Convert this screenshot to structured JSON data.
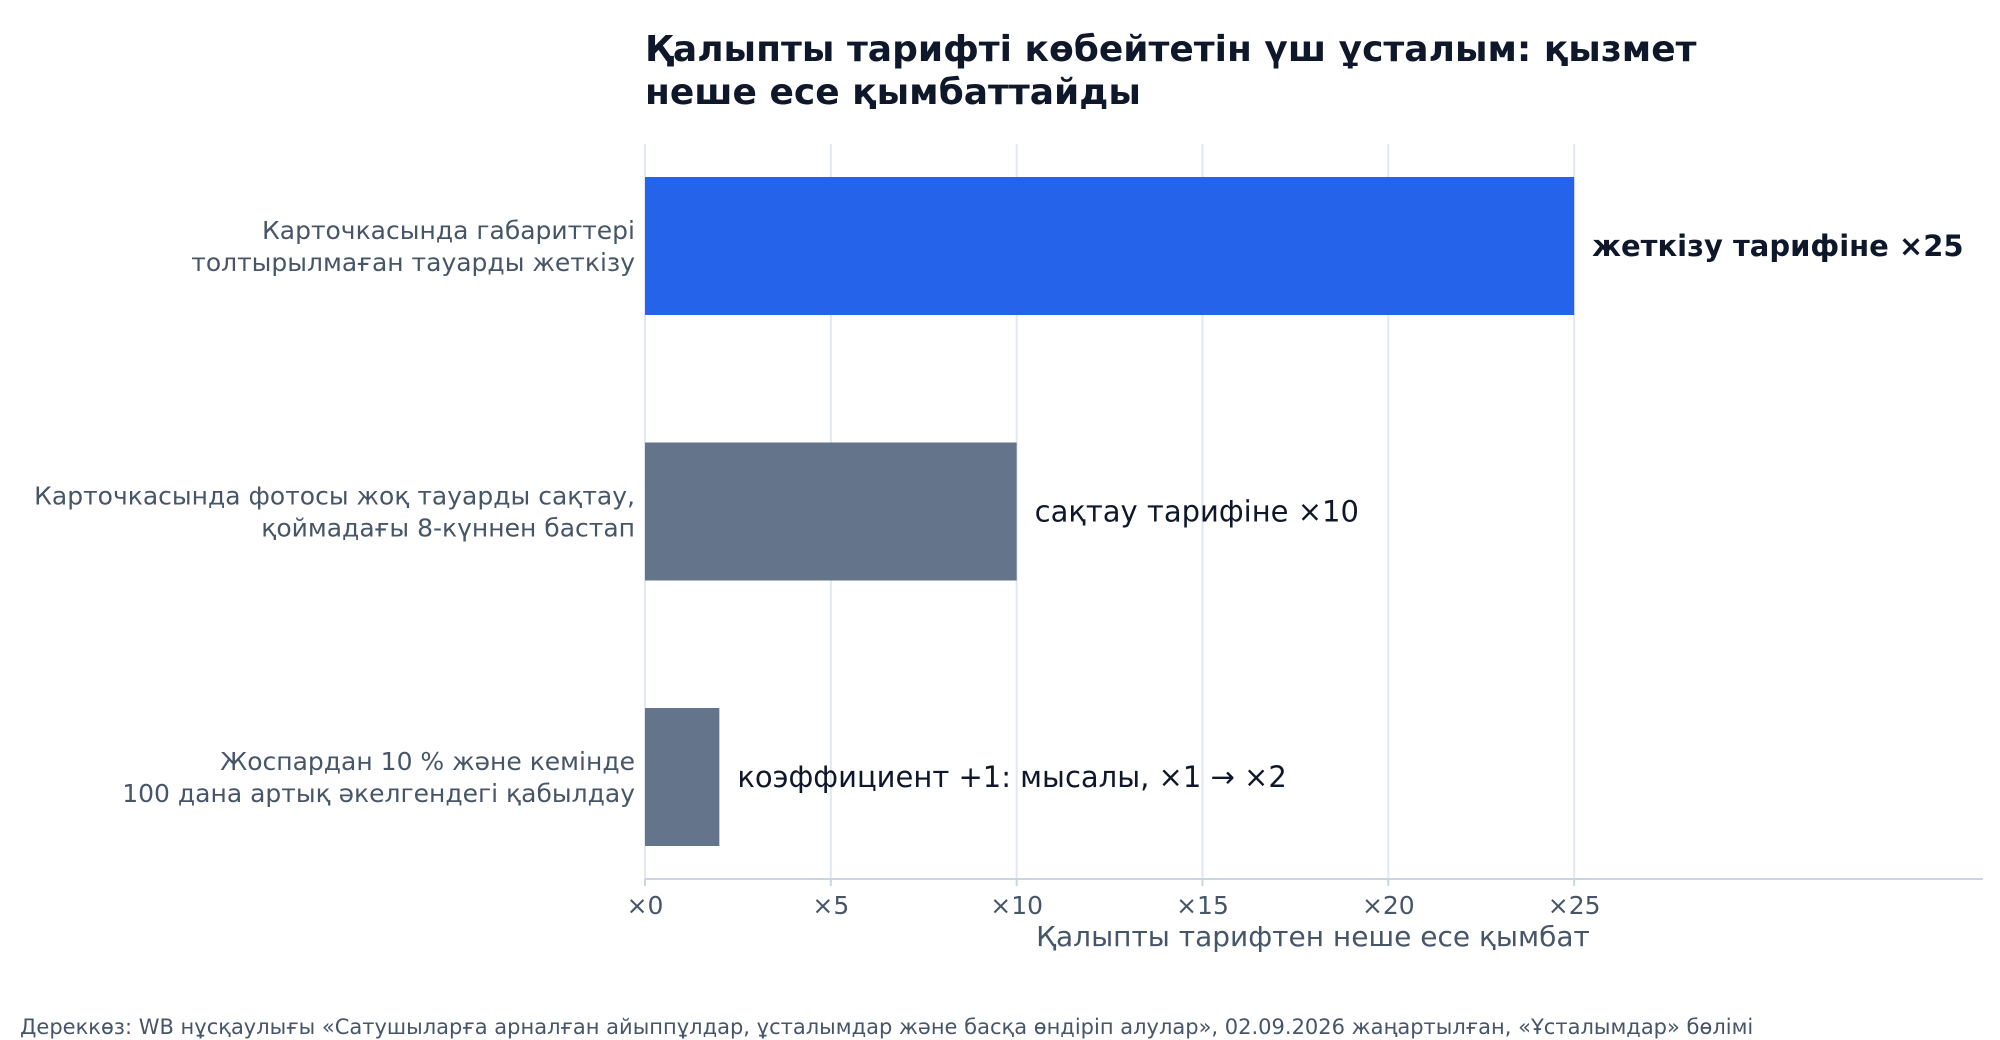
{
  "chart_data": {
    "type": "bar",
    "orientation": "horizontal",
    "title_lines": [
      "Қалыпты тарифті көбейтетін үш ұсталым: қызмет",
      "неше есе қымбаттайды"
    ],
    "categories": [
      [
        "Карточкасында габариттері",
        "толтырылмаған тауарды жеткізу"
      ],
      [
        "Карточкасында фотосы жоқ тауарды сақтау,",
        "қоймадағы 8-күннен бастап"
      ],
      [
        "Жоспардан 10 % және кемінде",
        "100 дана артық әкелгендегі қабылдау"
      ]
    ],
    "values": [
      25,
      10,
      2
    ],
    "data_labels": [
      "жеткізу тарифіне ×25",
      "сақтау тарифіне ×10",
      "коэффициент +1: мысалы, ×1 → ×2"
    ],
    "highlight_index": 0,
    "colors": {
      "highlight": "#2563eb",
      "default": "#64748b",
      "grid": "#e2e8f0",
      "axis": "#cbd5e1"
    },
    "xlim": [
      0,
      36
    ],
    "xticks": [
      0,
      5,
      10,
      15,
      20,
      25
    ],
    "xtick_labels": [
      "×0",
      "×5",
      "×10",
      "×15",
      "×20",
      "×25"
    ],
    "xlabel": "Қалыпты тарифтен неше есе қымбат",
    "ylabel": "",
    "grid": "vertical",
    "legend": "none"
  },
  "footer": {
    "source": "Дереккөз: WB нұсқаулығы «Сатушыларға арналған айыппұлдар, ұсталымдар және басқа өндіріп алулар», 02.09.2026 жаңартылған, «Ұсталымдар» бөлімі"
  }
}
